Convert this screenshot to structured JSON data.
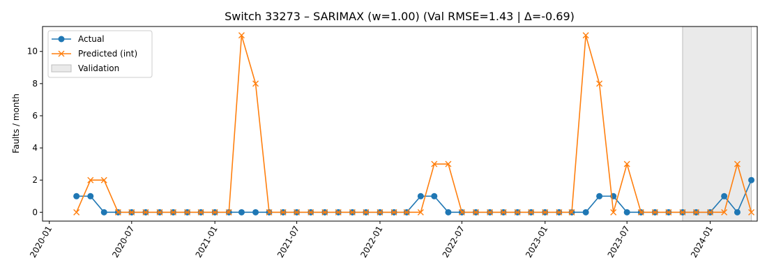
{
  "chart_data": {
    "type": "line",
    "title": "Switch 33273 – SARIMAX (w=1.00) (Val RMSE=1.43 | Δ=-0.69)",
    "xlabel": "",
    "ylabel": "Faults / month",
    "ylim": [
      -0.55,
      11.55
    ],
    "xlim": [
      "2019-12-17",
      "2024-04-14"
    ],
    "x_ticks": [
      "2020-01",
      "2020-07",
      "2021-01",
      "2021-07",
      "2022-01",
      "2022-07",
      "2023-01",
      "2023-07",
      "2024-01"
    ],
    "y_ticks": [
      0,
      2,
      4,
      6,
      8,
      10
    ],
    "grid": false,
    "legend_position": "upper left",
    "x": [
      "2020-03",
      "2020-04",
      "2020-05",
      "2020-06",
      "2020-07",
      "2020-08",
      "2020-09",
      "2020-10",
      "2020-11",
      "2020-12",
      "2021-01",
      "2021-02",
      "2021-03",
      "2021-04",
      "2021-05",
      "2021-06",
      "2021-07",
      "2021-08",
      "2021-09",
      "2021-10",
      "2021-11",
      "2021-12",
      "2022-01",
      "2022-02",
      "2022-03",
      "2022-04",
      "2022-05",
      "2022-06",
      "2022-07",
      "2022-08",
      "2022-09",
      "2022-10",
      "2022-11",
      "2022-12",
      "2023-01",
      "2023-02",
      "2023-03",
      "2023-04",
      "2023-05",
      "2023-06",
      "2023-07",
      "2023-08",
      "2023-09",
      "2023-10",
      "2023-11",
      "2023-12",
      "2024-01",
      "2024-02",
      "2024-03",
      "2024-04"
    ],
    "series": [
      {
        "name": "Actual",
        "color": "#1f77b4",
        "marker": "circle",
        "values": [
          1,
          1,
          0,
          0,
          0,
          0,
          0,
          0,
          0,
          0,
          0,
          0,
          0,
          0,
          0,
          0,
          0,
          0,
          0,
          0,
          0,
          0,
          0,
          0,
          0,
          1,
          1,
          0,
          0,
          0,
          0,
          0,
          0,
          0,
          0,
          0,
          0,
          0,
          1,
          1,
          0,
          0,
          0,
          0,
          0,
          0,
          0,
          1,
          0,
          2
        ]
      },
      {
        "name": "Predicted (int)",
        "color": "#ff7f0e",
        "marker": "x",
        "values": [
          0,
          2,
          2,
          0,
          0,
          0,
          0,
          0,
          0,
          0,
          0,
          0,
          11,
          8,
          0,
          0,
          0,
          0,
          0,
          0,
          0,
          0,
          0,
          0,
          0,
          0,
          3,
          3,
          0,
          0,
          0,
          0,
          0,
          0,
          0,
          0,
          0,
          11,
          8,
          0,
          3,
          0,
          0,
          0,
          0,
          0,
          0,
          0,
          3,
          0
        ]
      }
    ],
    "validation_span": {
      "label": "Validation",
      "start": "2023-11",
      "end": "2024-04",
      "color": "#d9d9d9"
    }
  }
}
